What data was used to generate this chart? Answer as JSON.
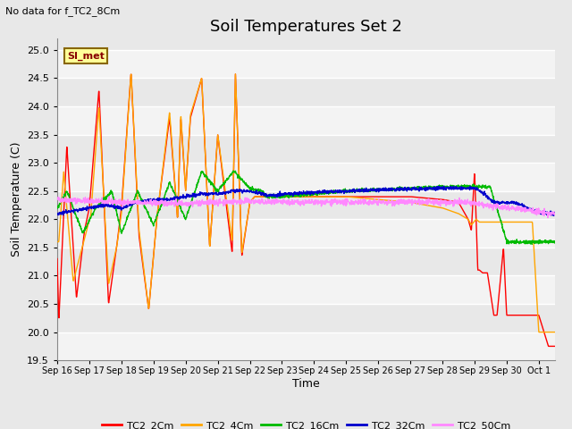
{
  "title": "Soil Temperatures Set 2",
  "subtitle": "No data for f_TC2_8Cm",
  "xlabel": "Time",
  "ylabel": "Soil Temperature (C)",
  "ylim": [
    19.5,
    25.2
  ],
  "yticks": [
    19.5,
    20.0,
    20.5,
    21.0,
    21.5,
    22.0,
    22.5,
    23.0,
    23.5,
    24.0,
    24.5,
    25.0
  ],
  "xtick_labels": [
    "Sep 16",
    "Sep 17",
    "Sep 18",
    "Sep 19",
    "Sep 20",
    "Sep 21",
    "Sep 22",
    "Sep 23",
    "Sep 24",
    "Sep 25",
    "Sep 26",
    "Sep 27",
    "Sep 28",
    "Sep 29",
    "Sep 30",
    "Oct 1"
  ],
  "series_colors": {
    "TC2_2Cm": "#FF0000",
    "TC2_4Cm": "#FFA500",
    "TC2_16Cm": "#00BB00",
    "TC2_32Cm": "#0000CC",
    "TC2_50Cm": "#FF88FF"
  },
  "legend_label": "SI_met",
  "legend_box_color": "#FFFF99",
  "legend_box_border": "#886600",
  "fig_bg_color": "#E8E8E8",
  "plot_bg_color": "#E8E8E8",
  "white_band_color": "#F5F5F5",
  "title_fontsize": 13,
  "axis_label_fontsize": 9,
  "tick_fontsize": 8,
  "linewidth": 1.0
}
